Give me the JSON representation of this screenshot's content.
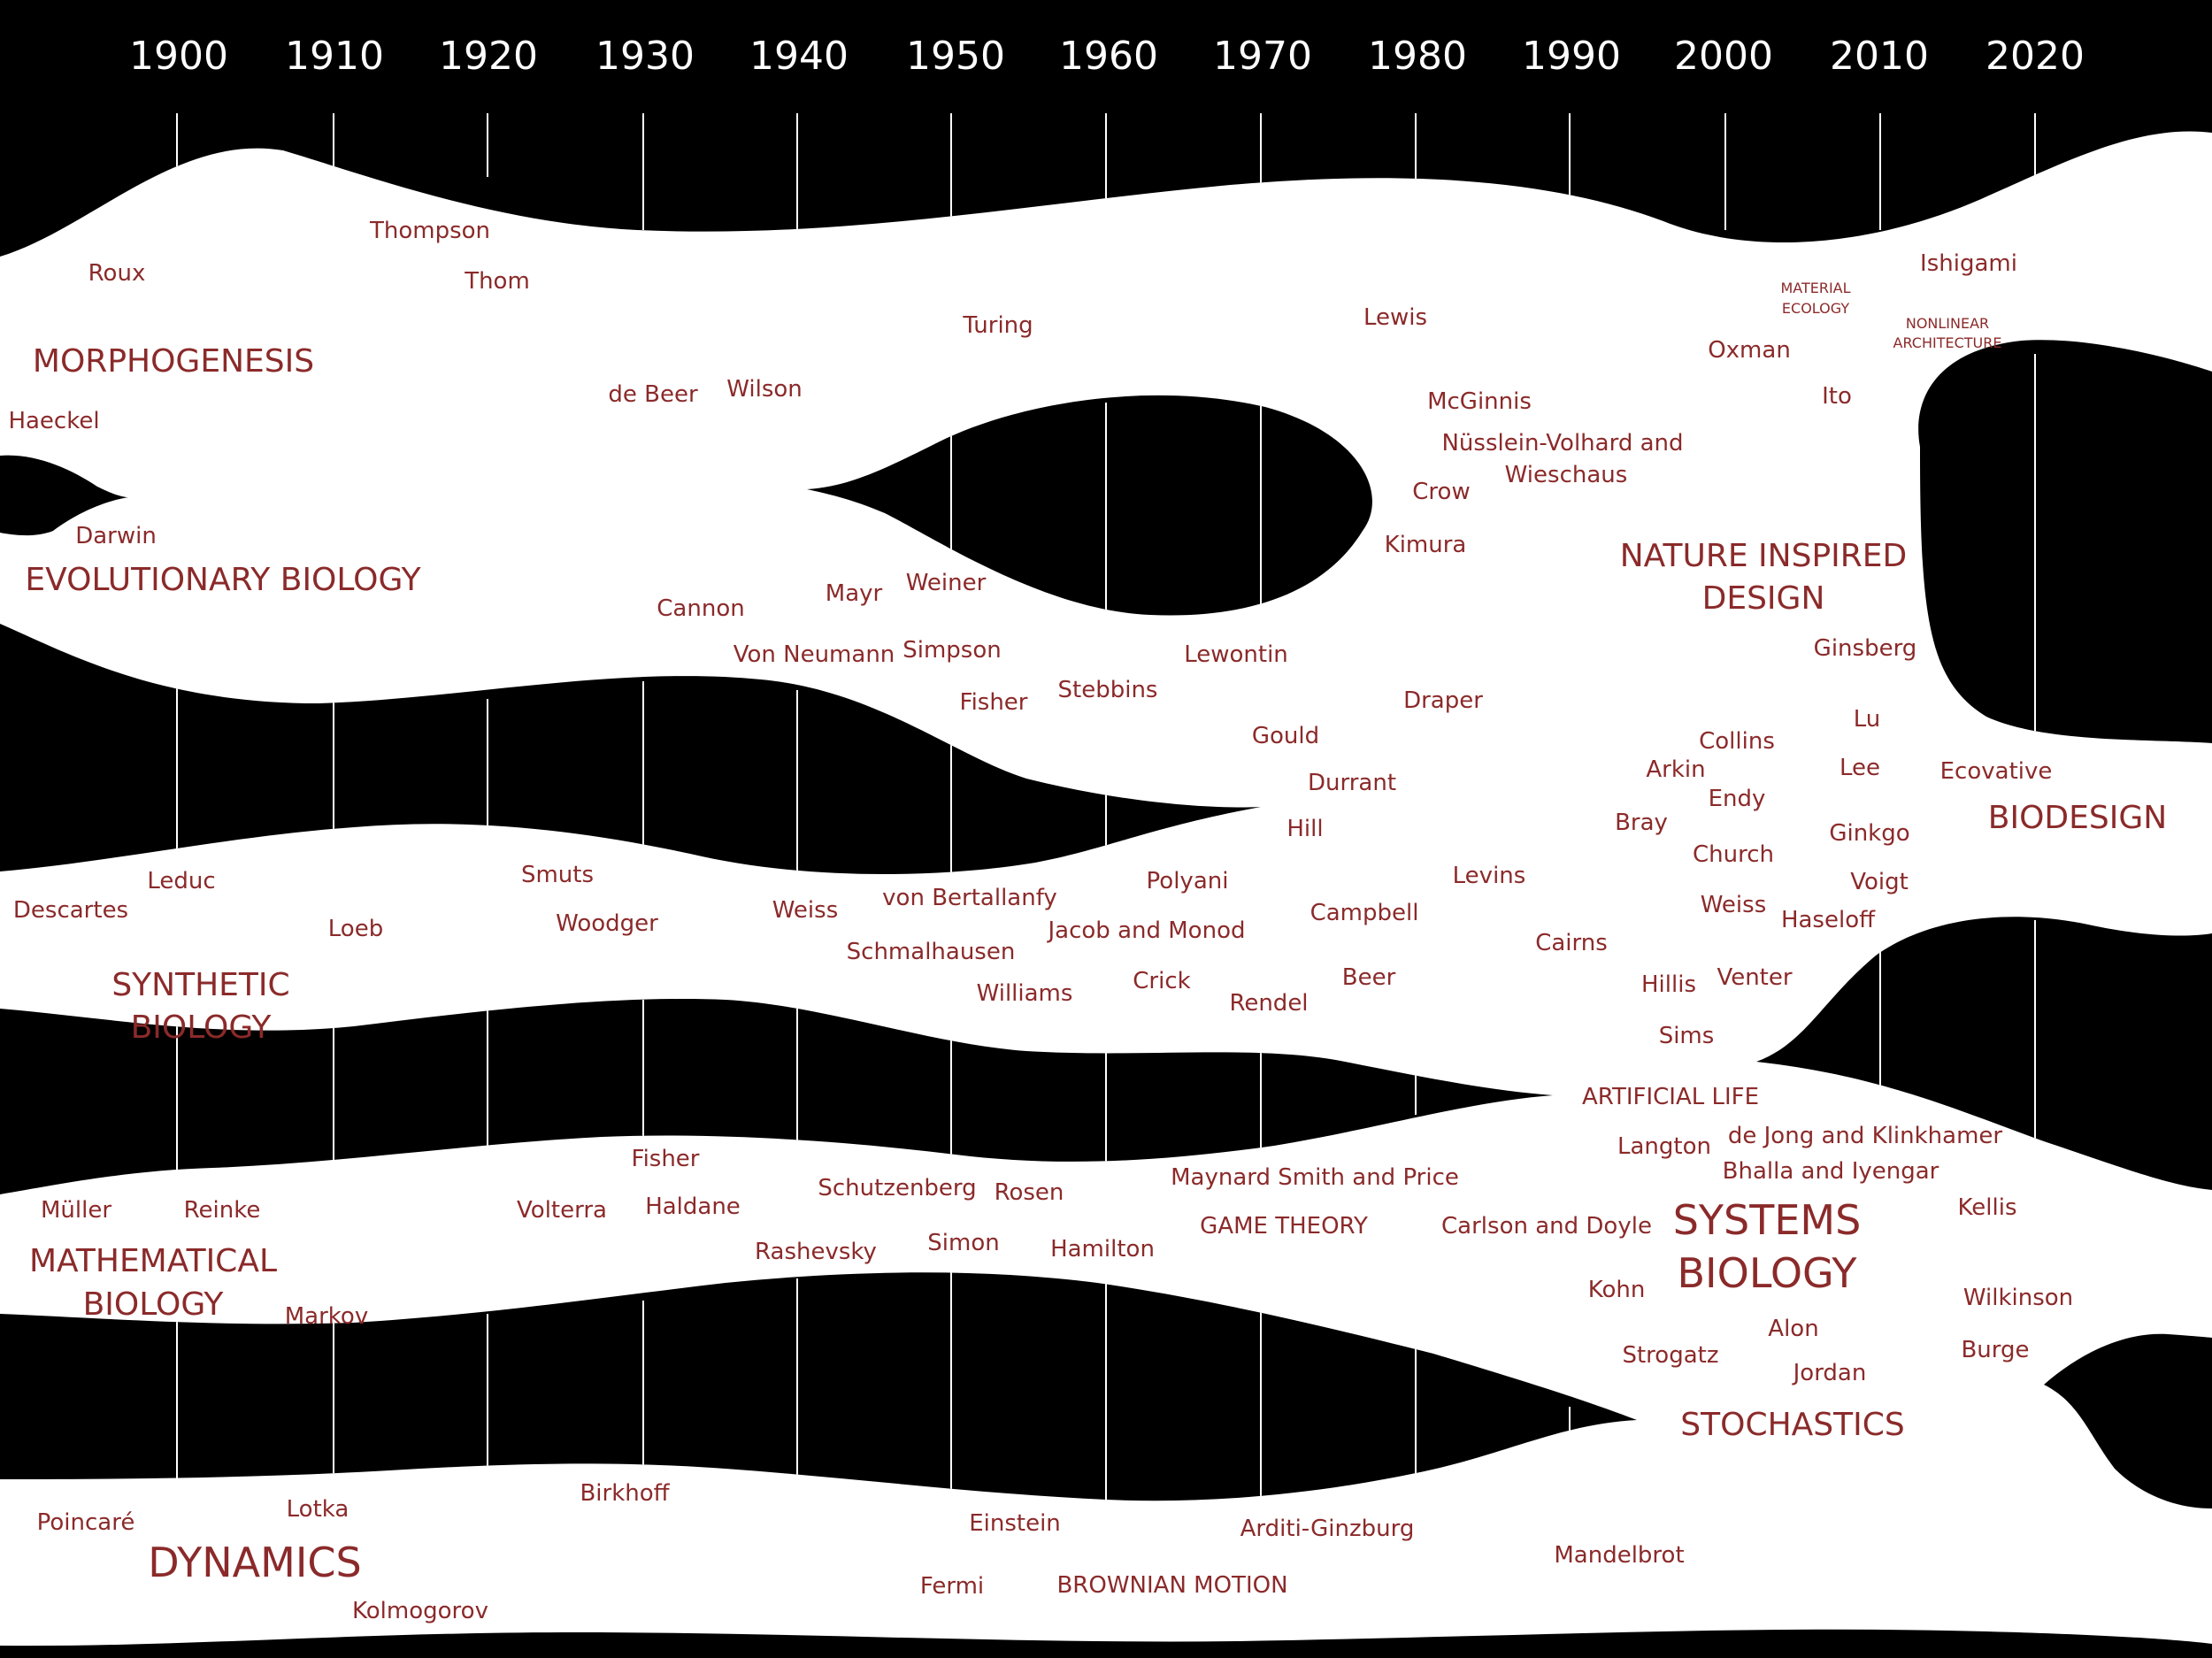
{
  "timeline": {
    "years": [
      "1900",
      "1910",
      "1920",
      "1930",
      "1940",
      "1950",
      "1960",
      "1970",
      "1980",
      "1990",
      "2000",
      "2010",
      "2020"
    ]
  },
  "colors": {
    "band": "#000000",
    "text": "#8b2a2a",
    "background": "#ffffff",
    "tick": "#ffffff"
  },
  "fields": [
    {
      "id": "morphogenesis",
      "lines": [
        "MORPHOGENESIS"
      ]
    },
    {
      "id": "evolutionary-biology",
      "lines": [
        "EVOLUTIONARY BIOLOGY"
      ]
    },
    {
      "id": "synthetic-biology",
      "lines": [
        "SYNTHETIC",
        "BIOLOGY"
      ]
    },
    {
      "id": "mathematical-biology",
      "lines": [
        "MATHEMATICAL",
        "BIOLOGY"
      ]
    },
    {
      "id": "dynamics",
      "lines": [
        "DYNAMICS"
      ]
    },
    {
      "id": "nature-inspired-design",
      "lines": [
        "NATURE INSPIRED",
        "DESIGN"
      ]
    },
    {
      "id": "biodesign",
      "lines": [
        "BIODESIGN"
      ]
    },
    {
      "id": "systems-biology",
      "lines": [
        "SYSTEMS",
        "BIOLOGY"
      ]
    },
    {
      "id": "stochastics",
      "lines": [
        "STOCHASTICS"
      ]
    },
    {
      "id": "artificial-life",
      "lines": [
        "ARTIFICIAL LIFE"
      ]
    },
    {
      "id": "game-theory",
      "lines": [
        "GAME THEORY"
      ]
    },
    {
      "id": "brownian-motion",
      "lines": [
        "BROWNIAN MOTION"
      ]
    },
    {
      "id": "material-ecology",
      "lines": [
        "MATERIAL",
        "ECOLOGY"
      ]
    },
    {
      "id": "nonlinear-architecture",
      "lines": [
        "NONLINEAR",
        "ARCHITECTURE"
      ]
    }
  ],
  "names": [
    "Thompson",
    "Roux",
    "Thom",
    "Turing",
    "Lewis",
    "Ishigami",
    "Oxman",
    "Haeckel",
    "de Beer",
    "Wilson",
    "McGinnis",
    "Ito",
    "Nüsslein-Volhard and",
    "Wieschaus",
    "Crow",
    "Darwin",
    "Kimura",
    "Cannon",
    "Mayr",
    "Weiner",
    "Von Neumann",
    "Simpson",
    "Lewontin",
    "Ginsberg",
    "Fisher",
    "Stebbins",
    "Draper",
    "Gould",
    "Collins",
    "Lu",
    "Durrant",
    "Arkin",
    "Lee",
    "Ecovative",
    "Endy",
    "Hill",
    "Bray",
    "Ginkgo",
    "Church",
    "Leduc",
    "Smuts",
    "Descartes",
    "Weiss",
    "Polyani",
    "Voigt",
    "Woodger",
    "von Bertallanfy",
    "Campbell",
    "Levins",
    "Haseloff",
    "Loeb",
    "Jacob and Monod",
    "Schmalhausen",
    "Cairns",
    "Venter",
    "Williams",
    "Crick",
    "Beer",
    "Hillis",
    "Rendel",
    "Sims",
    "Langton",
    "de Jong and Klinkhamer",
    "Bhalla and Iyengar",
    "Maynard Smith and Price",
    "Müller",
    "Reinke",
    "Volterra",
    "Fisher",
    "Haldane",
    "Schutzenberg",
    "Rosen",
    "Carlson and Doyle",
    "Kellis",
    "Rashevsky",
    "Simon",
    "Hamilton",
    "Kohn",
    "Markov",
    "Wilkinson",
    "Alon",
    "Strogatz",
    "Burge",
    "Jordan",
    "Birkhoff",
    "Lotka",
    "Poincaré",
    "Einstein",
    "Arditi-Ginzburg",
    "Mandelbrot",
    "Fermi",
    "Kolmogorov",
    "Weiss"
  ]
}
